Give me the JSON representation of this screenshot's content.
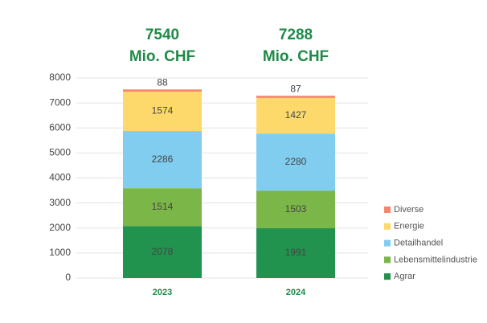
{
  "chart_data": {
    "type": "stacked-bar",
    "categories": [
      "2023",
      "2024"
    ],
    "totals": [
      7540,
      7288
    ],
    "total_unit": "Mio. CHF",
    "series": [
      {
        "name": "Agrar",
        "color": "#21934f",
        "values": [
          2078,
          1991
        ]
      },
      {
        "name": "Lebensmittelindustrie",
        "color": "#7ab648",
        "values": [
          1514,
          1503
        ]
      },
      {
        "name": "Detailhandel",
        "color": "#80cdf0",
        "values": [
          2286,
          2280
        ]
      },
      {
        "name": "Energie",
        "color": "#fdd96b",
        "values": [
          1574,
          1427
        ]
      },
      {
        "name": "Diverse",
        "color": "#f4876a",
        "values": [
          88,
          87
        ]
      }
    ],
    "ylim": [
      0,
      8000
    ],
    "yticks": [
      0,
      1000,
      2000,
      3000,
      4000,
      5000,
      6000,
      7000,
      8000
    ],
    "grid": true,
    "legend": "right"
  }
}
